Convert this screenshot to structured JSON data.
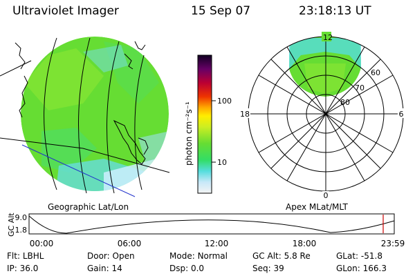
{
  "header": {
    "title": "Ultraviolet Imager",
    "date": "15 Sep 07",
    "time": "23:18:13 UT"
  },
  "colors": {
    "green": "#66dd33",
    "lime": "#99ee22",
    "cyan": "#55dddd",
    "paleblue": "#cceeff",
    "track": "#2233cc",
    "marker": "#cc0000"
  },
  "map_labels": {
    "left": "Geographic Lat/Lon",
    "right": "Apex MLat/MLT"
  },
  "colorbar": {
    "unit_label": "photon cm⁻²s⁻¹",
    "ticks": [
      "100",
      "10"
    ]
  },
  "polar": {
    "mlt_labels": {
      "top": "12",
      "left": "18",
      "right": "6",
      "bottom": "0"
    },
    "lat_labels": [
      "60",
      "70",
      "80"
    ]
  },
  "altitude_plot": {
    "ylabel": "GC Alt",
    "yticks": [
      "9.0",
      "1.8"
    ],
    "xticks": [
      "00:00",
      "06:00",
      "12:00",
      "18:00",
      "23:59"
    ]
  },
  "info": [
    [
      {
        "label": "Flt:",
        "value": "LBHL"
      },
      {
        "label": "Door:",
        "value": "Open"
      },
      {
        "label": "Mode:",
        "value": "Normal"
      },
      {
        "label": "GC Alt:",
        "value": "5.8 Re"
      },
      {
        "label": "GLat:",
        "value": "-51.8"
      }
    ],
    [
      {
        "label": "IP:",
        "value": "36.0"
      },
      {
        "label": "Gain:",
        "value": "14"
      },
      {
        "label": "Dsp:",
        "value": "0.0"
      },
      {
        "label": "Seq:",
        "value": "39"
      },
      {
        "label": "GLon:",
        "value": "166.3"
      }
    ]
  ]
}
